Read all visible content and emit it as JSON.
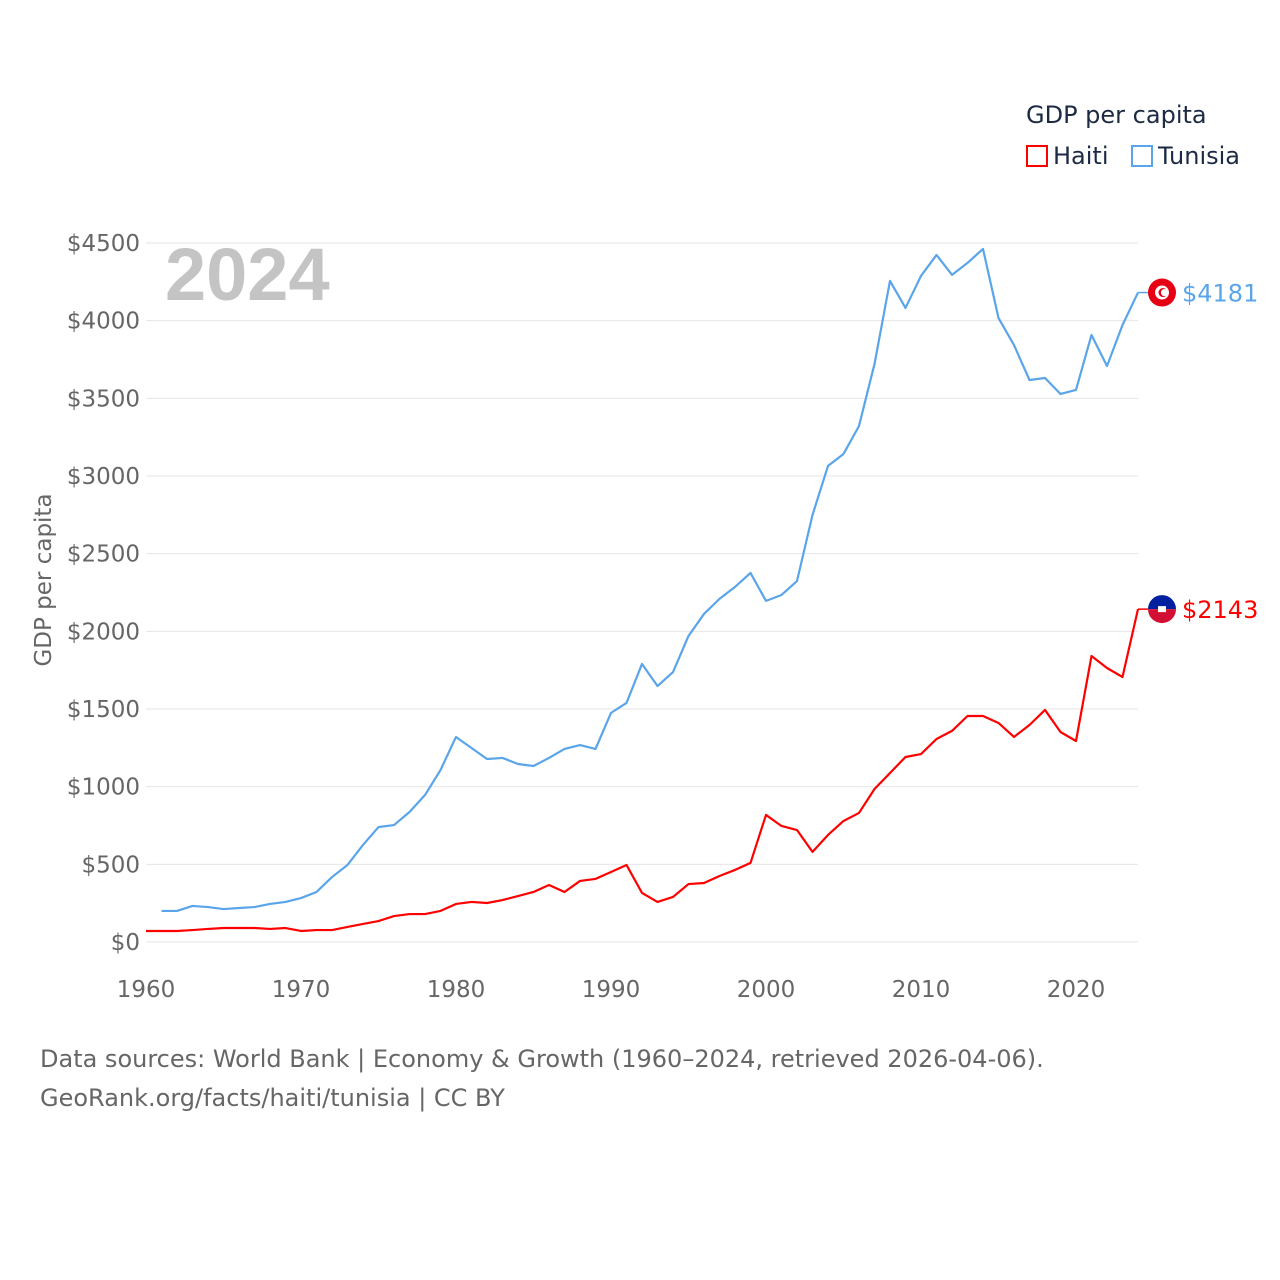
{
  "legend": {
    "title": "GDP per capita",
    "items": [
      {
        "label": "Haiti",
        "color": "#ff0000"
      },
      {
        "label": "Tunisia",
        "color": "#5aa5ea"
      }
    ]
  },
  "year_watermark": "2024",
  "footer": {
    "line1": "Data sources: World Bank | Economy & Growth (1960–2024, retrieved 2026-04-06).",
    "line2": "GeoRank.org/facts/haiti/tunisia | CC BY"
  },
  "chart_data": {
    "type": "line",
    "title": "GDP per capita",
    "xlabel": "",
    "ylabel": "GDP per capita",
    "xlim": [
      1960,
      2024
    ],
    "ylim": [
      0,
      4500
    ],
    "x_ticks": [
      1960,
      1970,
      1980,
      1990,
      2000,
      2010,
      2020
    ],
    "y_ticks": [
      0,
      500,
      1000,
      1500,
      2000,
      2500,
      3000,
      3500,
      4000,
      4500
    ],
    "y_tick_labels": [
      "$0",
      "$500",
      "$1000",
      "$1500",
      "$2000",
      "$2500",
      "$3000",
      "$3500",
      "$4000",
      "$4500"
    ],
    "grid": true,
    "legend_position": "top-right",
    "series": [
      {
        "name": "Haiti",
        "color": "#ff0000",
        "end_label": "$2143",
        "start_year": 1960,
        "values": [
          71,
          71,
          71,
          77,
          84,
          90,
          90,
          90,
          84,
          90,
          71,
          77,
          77,
          97,
          116,
          135,
          167,
          180,
          180,
          200,
          245,
          258,
          251,
          270,
          296,
          322,
          367,
          322,
          393,
          406,
          451,
          496,
          316,
          258,
          290,
          373,
          380,
          425,
          464,
          509,
          818,
          747,
          721,
          580,
          689,
          779,
          831,
          985,
          1088,
          1191,
          1210,
          1307,
          1359,
          1455,
          1455,
          1410,
          1320,
          1397,
          1494,
          1352,
          1294,
          1841,
          1764,
          1706,
          2143
        ]
      },
      {
        "name": "Tunisia",
        "color": "#5aa5ea",
        "end_label": "$4181",
        "start_year": 1961,
        "values": [
          200,
          200,
          232,
          225,
          212,
          219,
          225,
          245,
          258,
          283,
          322,
          418,
          496,
          625,
          740,
          753,
          837,
          946,
          1107,
          1320,
          1249,
          1178,
          1185,
          1146,
          1133,
          1185,
          1243,
          1268,
          1243,
          1475,
          1539,
          1790,
          1648,
          1738,
          1970,
          2112,
          2209,
          2286,
          2376,
          2196,
          2234,
          2324,
          2749,
          3065,
          3142,
          3322,
          3721,
          4256,
          4082,
          4288,
          4423,
          4295,
          4372,
          4462,
          4017,
          3843,
          3618,
          3631,
          3528,
          3554,
          3908,
          3708,
          3972,
          4181
        ]
      }
    ]
  }
}
